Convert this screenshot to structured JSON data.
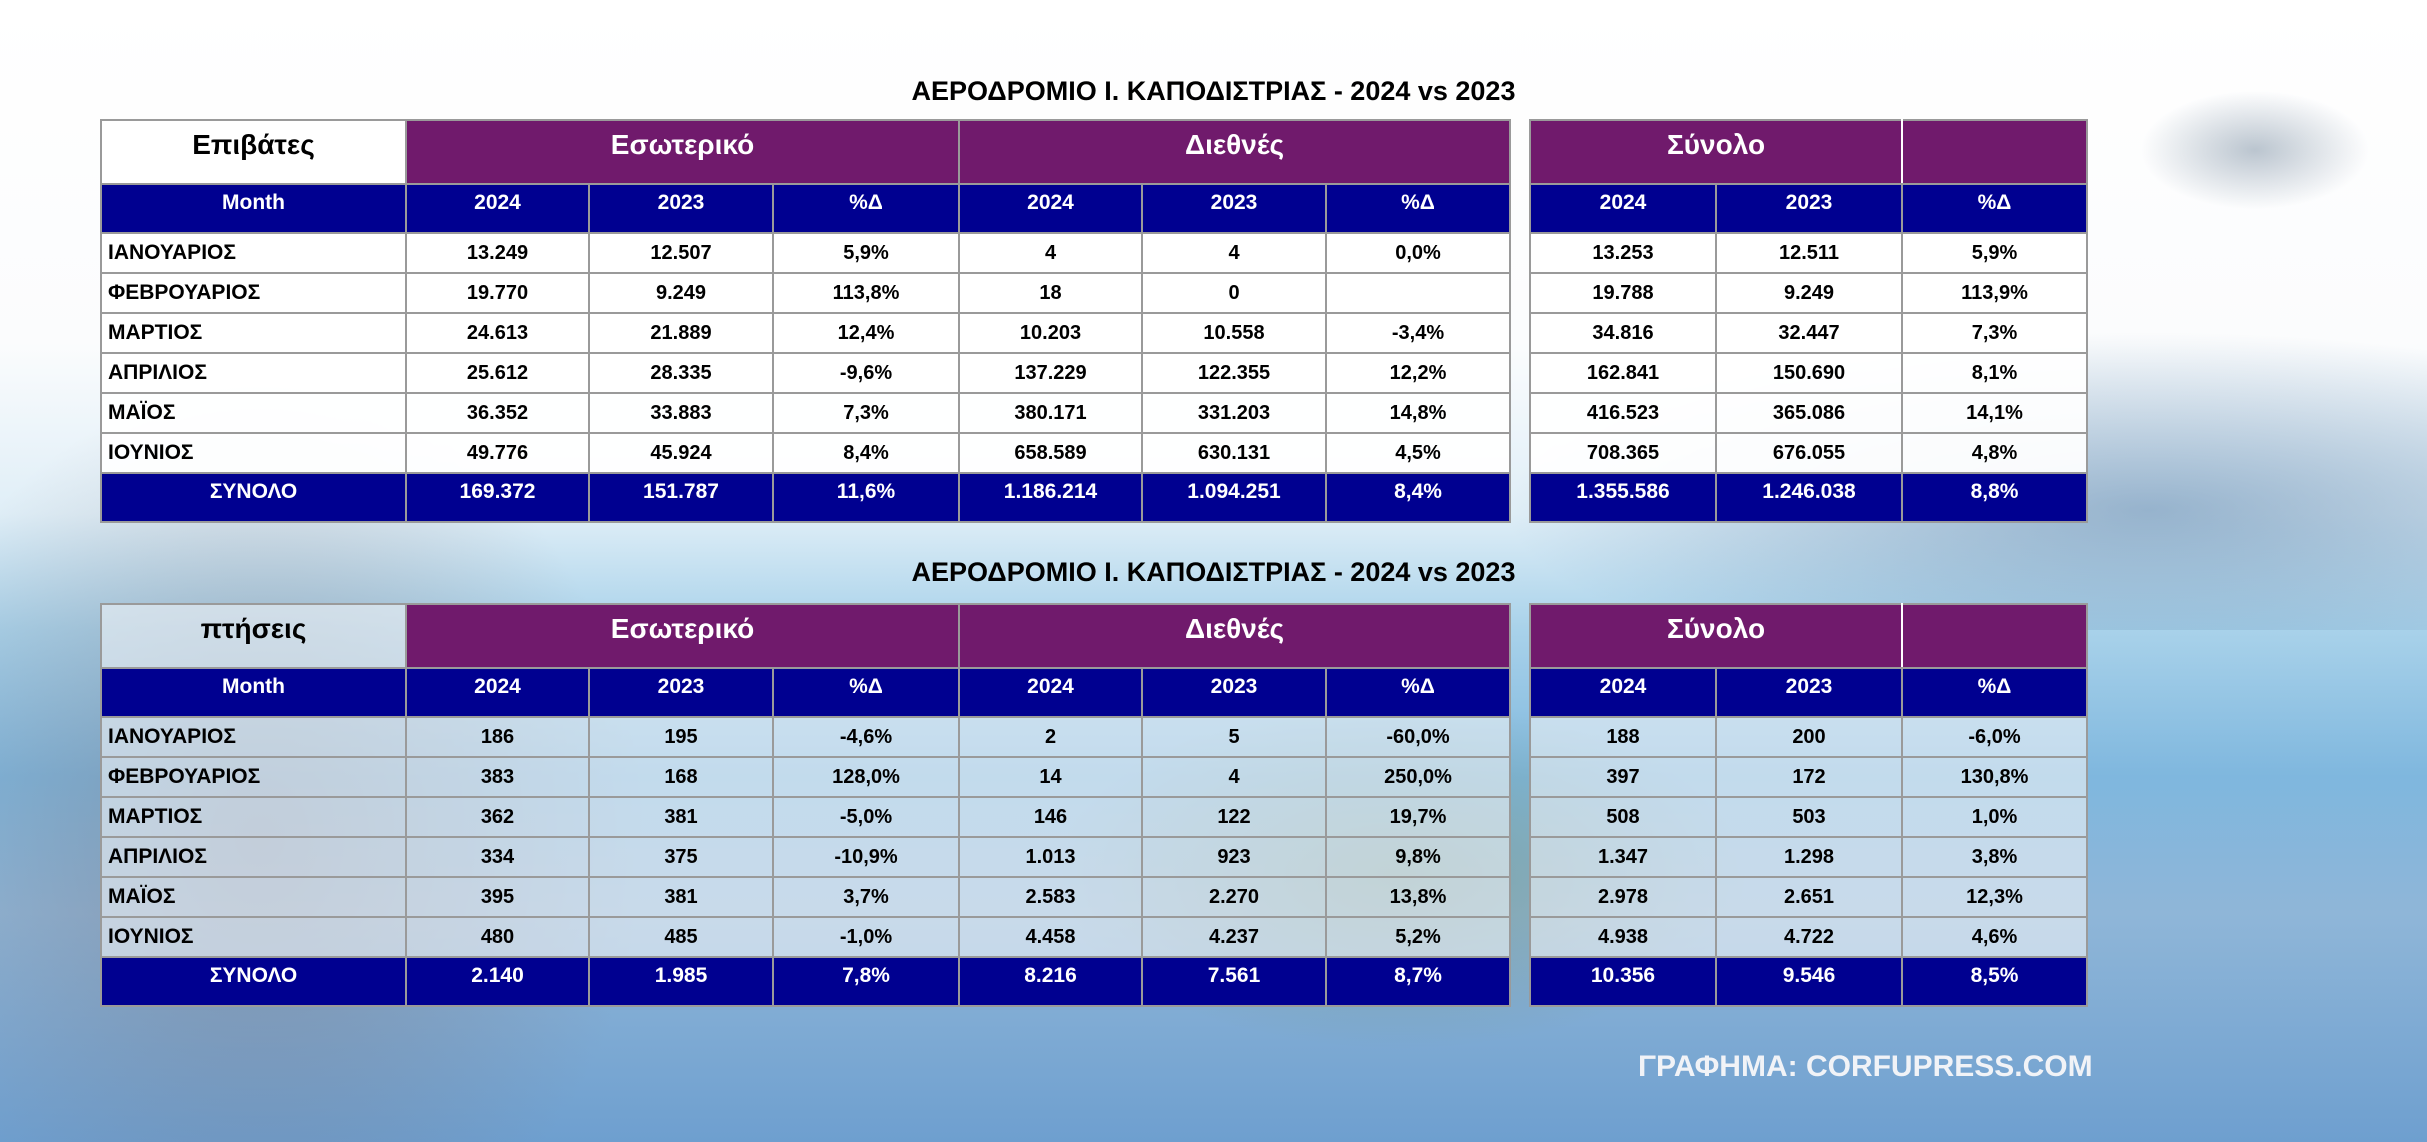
{
  "colors": {
    "group_header": "#701a6c",
    "column_header": "#000090"
  },
  "tables": [
    {
      "title": "ΑΕΡΟΔΡΟΜΙΟ Ι. ΚΑΠΟΔΙΣΤΡΙΑΣ - 2024 vs 2023",
      "corner_label": "Επιβάτες",
      "groups": [
        "Εσωτερικό",
        "Διεθνές",
        "Σύνολο"
      ],
      "month_header": "Month",
      "col_headers": [
        "2024",
        "2023",
        "%Δ"
      ],
      "rows": [
        {
          "month": "ΙΑΝΟΥΑΡΙΟΣ",
          "values": [
            "13.249",
            "12.507",
            "5,9%",
            "4",
            "4",
            "0,0%",
            "13.253",
            "12.511",
            "5,9%"
          ]
        },
        {
          "month": "ΦΕΒΡΟΥΑΡΙΟΣ",
          "values": [
            "19.770",
            "9.249",
            "113,8%",
            "18",
            "0",
            "",
            "19.788",
            "9.249",
            "113,9%"
          ]
        },
        {
          "month": "ΜΑΡΤΙΟΣ",
          "values": [
            "24.613",
            "21.889",
            "12,4%",
            "10.203",
            "10.558",
            "-3,4%",
            "34.816",
            "32.447",
            "7,3%"
          ]
        },
        {
          "month": "ΑΠΡΙΛΙΟΣ",
          "values": [
            "25.612",
            "28.335",
            "-9,6%",
            "137.229",
            "122.355",
            "12,2%",
            "162.841",
            "150.690",
            "8,1%"
          ]
        },
        {
          "month": "ΜΑΪΟΣ",
          "values": [
            "36.352",
            "33.883",
            "7,3%",
            "380.171",
            "331.203",
            "14,8%",
            "416.523",
            "365.086",
            "14,1%"
          ]
        },
        {
          "month": "ΙΟΥΝΙΟΣ",
          "values": [
            "49.776",
            "45.924",
            "8,4%",
            "658.589",
            "630.131",
            "4,5%",
            "708.365",
            "676.055",
            "4,8%"
          ]
        }
      ],
      "total": {
        "label": "ΣΥΝΟΛΟ",
        "values": [
          "169.372",
          "151.787",
          "11,6%",
          "1.186.214",
          "1.094.251",
          "8,4%",
          "1.355.586",
          "1.246.038",
          "8,8%"
        ]
      }
    },
    {
      "title": "ΑΕΡΟΔΡΟΜΙΟ Ι. ΚΑΠΟΔΙΣΤΡΙΑΣ - 2024 vs 2023",
      "corner_label": "πτήσεις",
      "groups": [
        "Εσωτερικό",
        "Διεθνές",
        "Σύνολο"
      ],
      "month_header": "Month",
      "col_headers": [
        "2024",
        "2023",
        "%Δ"
      ],
      "rows": [
        {
          "month": "ΙΑΝΟΥΑΡΙΟΣ",
          "values": [
            "186",
            "195",
            "-4,6%",
            "2",
            "5",
            "-60,0%",
            "188",
            "200",
            "-6,0%"
          ]
        },
        {
          "month": "ΦΕΒΡΟΥΑΡΙΟΣ",
          "values": [
            "383",
            "168",
            "128,0%",
            "14",
            "4",
            "250,0%",
            "397",
            "172",
            "130,8%"
          ]
        },
        {
          "month": "ΜΑΡΤΙΟΣ",
          "values": [
            "362",
            "381",
            "-5,0%",
            "146",
            "122",
            "19,7%",
            "508",
            "503",
            "1,0%"
          ]
        },
        {
          "month": "ΑΠΡΙΛΙΟΣ",
          "values": [
            "334",
            "375",
            "-10,9%",
            "1.013",
            "923",
            "9,8%",
            "1.347",
            "1.298",
            "3,8%"
          ]
        },
        {
          "month": "ΜΑΪΟΣ",
          "values": [
            "395",
            "381",
            "3,7%",
            "2.583",
            "2.270",
            "13,8%",
            "2.978",
            "2.651",
            "12,3%"
          ]
        },
        {
          "month": "ΙΟΥΝΙΟΣ",
          "values": [
            "480",
            "485",
            "-1,0%",
            "4.458",
            "4.237",
            "5,2%",
            "4.938",
            "4.722",
            "4,6%"
          ]
        }
      ],
      "total": {
        "label": "ΣΥΝΟΛΟ",
        "values": [
          "2.140",
          "1.985",
          "7,8%",
          "8.216",
          "7.561",
          "8,7%",
          "10.356",
          "9.546",
          "8,5%"
        ]
      }
    }
  ],
  "credit": "ΓΡΑΦΗΜΑ: CORFUPRESS.COM"
}
